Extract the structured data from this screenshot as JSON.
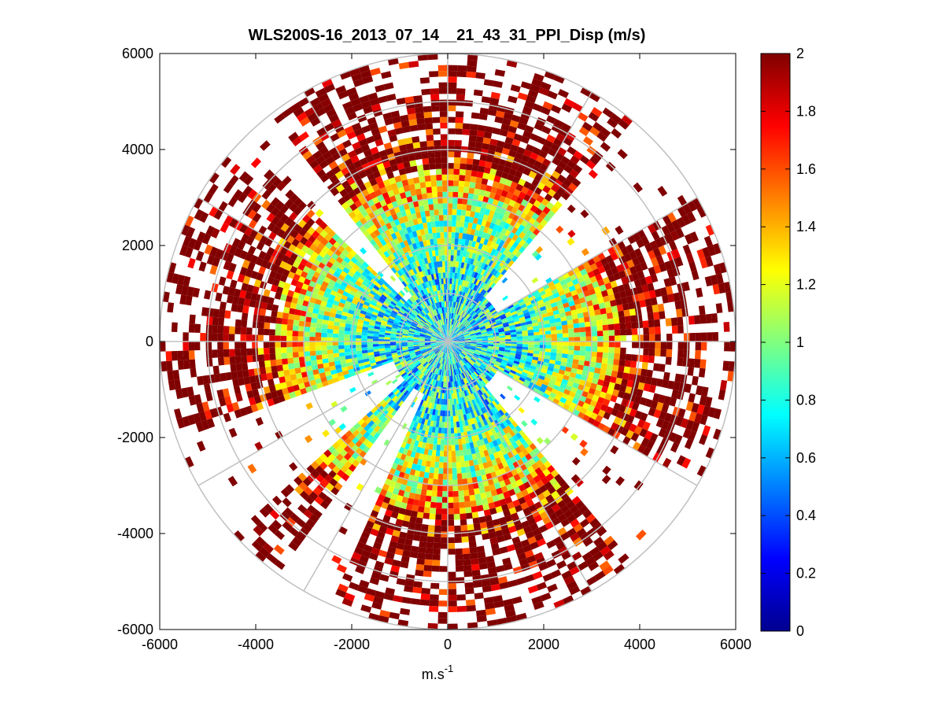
{
  "chart_data": {
    "type": "heatmap",
    "subtype": "polar-ppi-scan",
    "title": "WLS200S-16_2013_07_14__21_43_31_PPI_Disp (m/s)",
    "xlabel_base": "m.s",
    "xlabel_exponent": "-1",
    "ylabel": "",
    "xlim": [
      -6000,
      6000
    ],
    "ylim": [
      -6000,
      6000
    ],
    "x_ticks": [
      "-6000",
      "-4000",
      "-2000",
      "0",
      "2000",
      "4000",
      "6000"
    ],
    "y_ticks": [
      "6000",
      "4000",
      "2000",
      "0",
      "-2000",
      "-4000",
      "-6000"
    ],
    "max_range": 6000,
    "range_ring_spacing": 1000,
    "azimuth_spoke_spacing_deg": 30,
    "colorbar": {
      "colormap": "jet",
      "min": 0,
      "max": 2,
      "ticks": [
        "2",
        "1.8",
        "1.6",
        "1.4",
        "1.2",
        "1",
        "0.8",
        "0.6",
        "0.4",
        "0.2",
        "0"
      ]
    },
    "approx_mean_value_by_range": [
      {
        "range_m": 500,
        "value": 0.75
      },
      {
        "range_m": 1500,
        "value": 0.8
      },
      {
        "range_m": 2500,
        "value": 1.05
      },
      {
        "range_m": 3500,
        "value": 1.5
      },
      {
        "range_m": 4500,
        "value": 1.9
      },
      {
        "range_m": 5500,
        "value": 2.0
      }
    ],
    "missing_sectors_deg": [
      [
        40,
        60
      ],
      [
        120,
        140
      ],
      [
        205,
        215
      ],
      [
        228,
        250
      ],
      [
        315,
        322
      ]
    ]
  }
}
